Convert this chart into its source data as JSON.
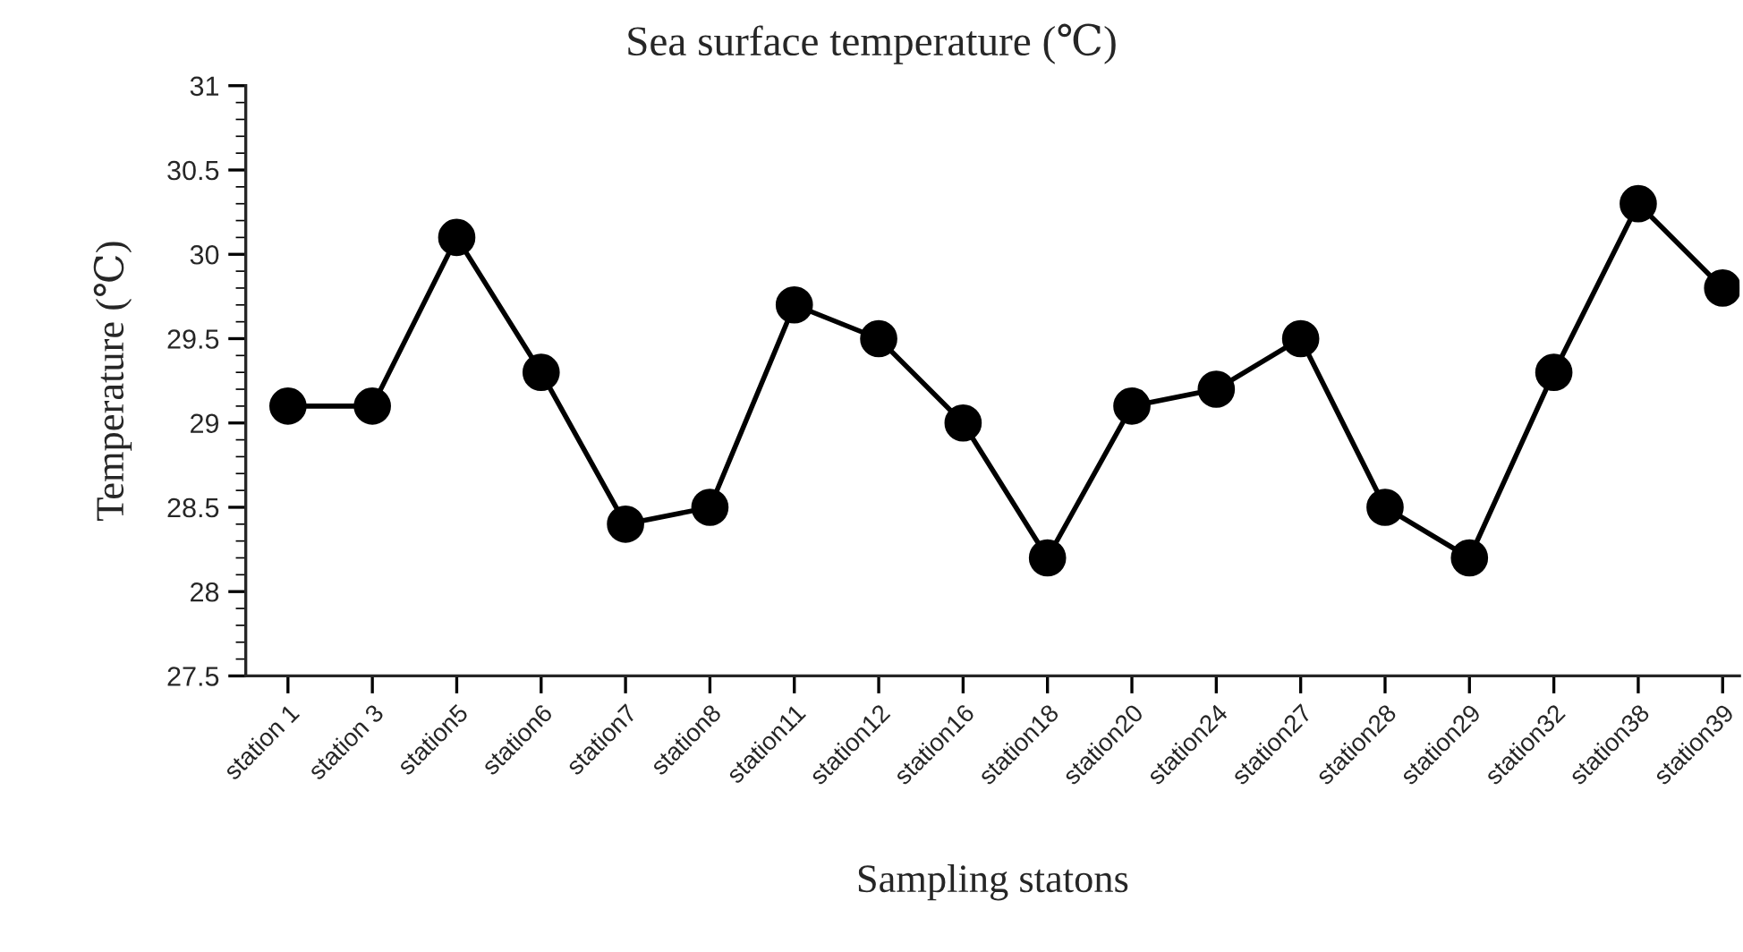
{
  "chart_data": {
    "type": "line",
    "title": "Sea surface temperature (℃)",
    "xlabel": "Sampling statons",
    "ylabel": "Temperature (℃)",
    "categories": [
      "station 1",
      "station 3",
      "station5",
      "station6",
      "station7",
      "station8",
      "station11",
      "station12",
      "station16",
      "station18",
      "station20",
      "station24",
      "station27",
      "station28",
      "station29",
      "station32",
      "station38",
      "station39"
    ],
    "series": [
      {
        "color": "#000000",
        "values": [
          29.1,
          29.1,
          30.1,
          29.3,
          28.4,
          28.5,
          29.7,
          29.5,
          29.0,
          28.2,
          29.1,
          29.2,
          29.5,
          28.5,
          28.2,
          29.3,
          30.3,
          29.8
        ]
      }
    ],
    "ylim": [
      27.5,
      31
    ],
    "yticks": [
      {
        "value": 27.5,
        "label": "27.5"
      },
      28,
      {
        "value": 28.5,
        "label": "28.5"
      },
      29,
      {
        "value": 29.5,
        "label": "29.5"
      },
      30,
      {
        "value": 30.5,
        "label": "30.5"
      },
      31
    ],
    "grid": false,
    "legend": false,
    "marker": "circle",
    "line_style": "solid"
  }
}
